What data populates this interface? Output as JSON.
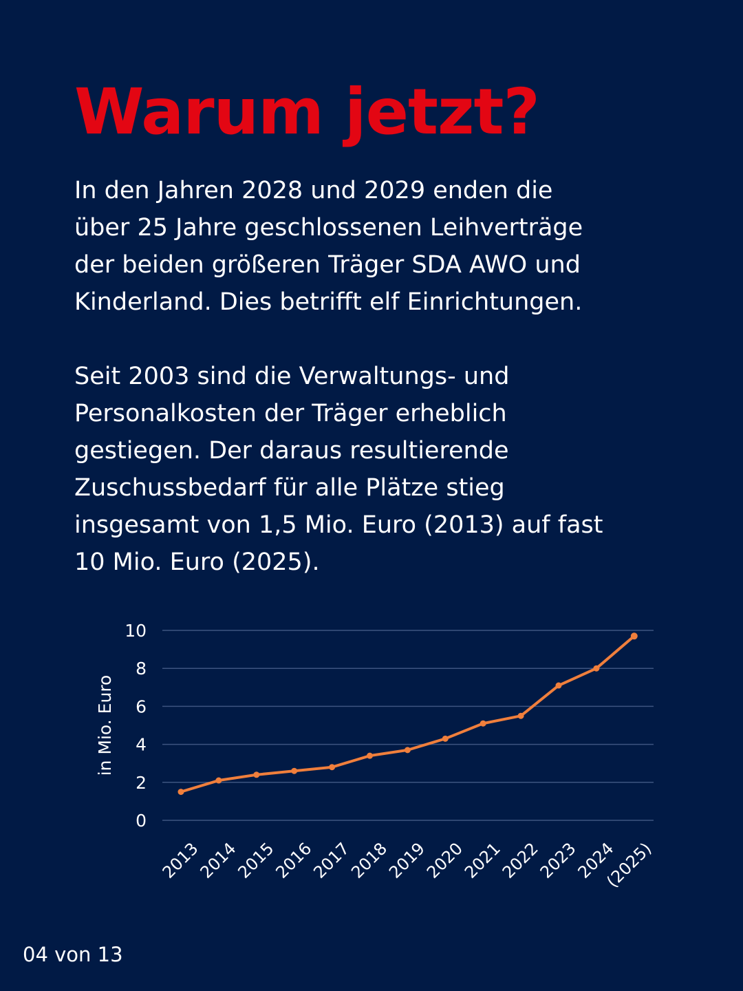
{
  "page": {
    "title": "Warum jetzt?",
    "paragraph1": [
      "In den Jahren 2028 und 2029 enden die",
      "über 25 Jahre geschlossenen Leihverträge",
      "der beiden größeren Träger SDA AWO und",
      "Kinderland. Dies betrifft elf Einrichtungen."
    ],
    "paragraph2": [
      "Seit 2003 sind die Verwaltungs- und",
      "Personalkosten der Träger erheblich",
      "gestiegen. Der daraus resultierende",
      "Zuschussbedarf für alle Plätze stieg",
      "insgesamt von 1,5 Mio. Euro (2013) auf fast",
      "10 Mio. Euro (2025)."
    ],
    "footer": "04 von 13",
    "colors": {
      "background": "#011a45",
      "title": "#e30613",
      "line": "#f07f3c",
      "grid": "#3d5480"
    }
  },
  "chart_data": {
    "type": "line",
    "title": "",
    "xlabel": "",
    "ylabel": "in Mio. Euro",
    "categories": [
      "2013",
      "2014",
      "2015",
      "2016",
      "2017",
      "2018",
      "2019",
      "2020",
      "2021",
      "2022",
      "2023",
      "2024",
      "(2025)"
    ],
    "series": [
      {
        "name": "Zuschussbedarf",
        "values": [
          1.5,
          2.1,
          2.4,
          2.6,
          2.8,
          3.4,
          3.7,
          4.3,
          5.1,
          5.5,
          7.1,
          8.0,
          9.7
        ]
      }
    ],
    "ylim": [
      0,
      10
    ],
    "yticks": [
      0,
      2,
      4,
      6,
      8,
      10
    ],
    "grid": true,
    "legend": "none"
  }
}
